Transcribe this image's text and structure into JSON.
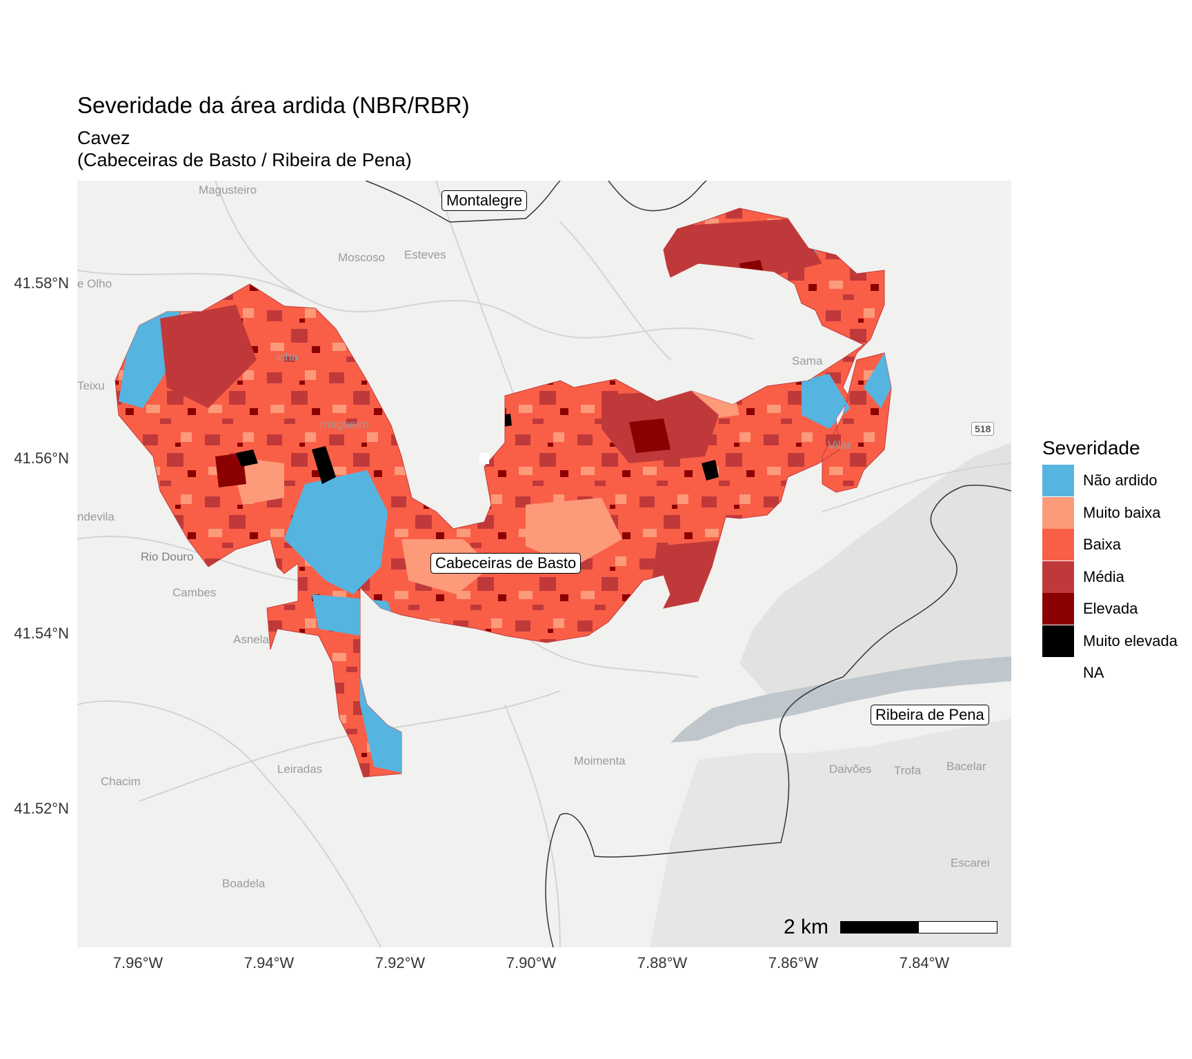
{
  "title": "Severidade da área ardida (NBR/RBR)",
  "subtitle_line1": "Cavez",
  "subtitle_line2": "(Cabeceiras de Basto / Ribeira de Pena)",
  "axes": {
    "x_ticks": [
      "7.96°W",
      "7.94°W",
      "7.92°W",
      "7.90°W",
      "7.88°W",
      "7.86°W",
      "7.84°W"
    ],
    "y_ticks": [
      "41.58°N",
      "41.56°N",
      "41.54°N",
      "41.52°N"
    ]
  },
  "map": {
    "boxed_labels": [
      "Montalegre",
      "Cabeceiras de Basto",
      "Ribeira de Pena"
    ],
    "basemap_labels": [
      "Magusteiro",
      "Moscoso",
      "Esteves",
      "e Olho",
      "Teixu",
      "inha",
      "rmigueiro",
      "Sama",
      "Vilar",
      "ndevila",
      "Rio Douro",
      "Cambes",
      "Asnela",
      "Moimenta",
      "Leiradas",
      "Chacim",
      "Daivões",
      "Trofa",
      "Bacelar",
      "Boadela",
      "Escarei"
    ],
    "road_shield": "518",
    "scale_bar_label": "2 km"
  },
  "legend": {
    "title": "Severidade",
    "items": [
      {
        "label": "Não ardido",
        "color": "#56B4E0"
      },
      {
        "label": "Muito baixa",
        "color": "#FC9A7A"
      },
      {
        "label": "Baixa",
        "color": "#F95F47"
      },
      {
        "label": "Média",
        "color": "#C0393A"
      },
      {
        "label": "Elevada",
        "color": "#8B0000"
      },
      {
        "label": "Muito elevada",
        "color": "#000000"
      },
      {
        "label": "NA",
        "color": "#FFFFFF"
      }
    ]
  },
  "colors": {
    "basemap": "#F1F1EF",
    "reservoir": "#BFC6CC",
    "boundary": "#333333"
  }
}
